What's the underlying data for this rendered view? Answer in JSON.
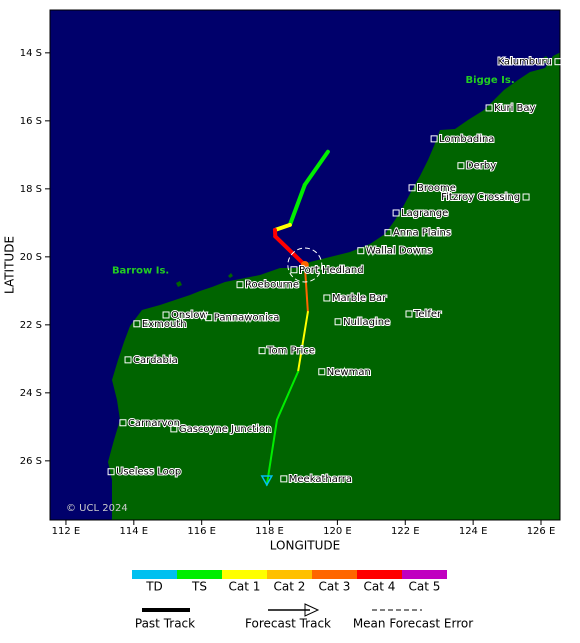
{
  "map": {
    "xlim": [
      111.53,
      126.56
    ],
    "ylim": [
      12.74,
      27.74
    ],
    "xlabel": "LONGITUDE",
    "ylabel": "LATITUDE",
    "xticks": [
      {
        "value": 112,
        "label": "112 E"
      },
      {
        "value": 114,
        "label": "114 E"
      },
      {
        "value": 116,
        "label": "116 E"
      },
      {
        "value": 118,
        "label": "118 E"
      },
      {
        "value": 120,
        "label": "120 E"
      },
      {
        "value": 122,
        "label": "122 E"
      },
      {
        "value": 124,
        "label": "124 E"
      },
      {
        "value": 126,
        "label": "126 E"
      }
    ],
    "yticks": [
      {
        "value": 14,
        "label": "14 S"
      },
      {
        "value": 16,
        "label": "16 S"
      },
      {
        "value": 18,
        "label": "18 S"
      },
      {
        "value": 20,
        "label": "20 S"
      },
      {
        "value": 22,
        "label": "22 S"
      },
      {
        "value": 24,
        "label": "24 S"
      },
      {
        "value": 26,
        "label": "26 S"
      }
    ],
    "copyright": "© UCL 2024",
    "islands": [
      {
        "name": "Barrow Is.",
        "lon": 114.2,
        "lat": 20.4
      },
      {
        "name": "Bigge Is.",
        "lon": 124.5,
        "lat": 14.8
      }
    ],
    "places": [
      {
        "name": "Kalumburu",
        "lon": 126.5,
        "lat": 14.26,
        "side": "left"
      },
      {
        "name": "Kuri Bay",
        "lon": 124.47,
        "lat": 15.62
      },
      {
        "name": "Lombadina",
        "lon": 122.85,
        "lat": 16.53
      },
      {
        "name": "Derby",
        "lon": 123.64,
        "lat": 17.32
      },
      {
        "name": "Broome",
        "lon": 122.2,
        "lat": 17.97
      },
      {
        "name": "Fitzroy Crossing",
        "lon": 125.56,
        "lat": 18.24,
        "side": "left"
      },
      {
        "name": "Lagrange",
        "lon": 121.73,
        "lat": 18.71
      },
      {
        "name": "Anna Plains",
        "lon": 121.49,
        "lat": 19.29
      },
      {
        "name": "Wallal Downs",
        "lon": 120.69,
        "lat": 19.82
      },
      {
        "name": "Port Hedland",
        "lon": 118.72,
        "lat": 20.38
      },
      {
        "name": "Roebourne",
        "lon": 117.13,
        "lat": 20.82
      },
      {
        "name": "Marble Bar",
        "lon": 119.69,
        "lat": 21.21
      },
      {
        "name": "Onslow",
        "lon": 114.95,
        "lat": 21.71
      },
      {
        "name": "Exmouth",
        "lon": 114.09,
        "lat": 21.97
      },
      {
        "name": "Pannawonica",
        "lon": 116.21,
        "lat": 21.79
      },
      {
        "name": "Telfer",
        "lon": 122.11,
        "lat": 21.68
      },
      {
        "name": "Nullagine",
        "lon": 120.02,
        "lat": 21.91
      },
      {
        "name": "Tom Price",
        "lon": 117.78,
        "lat": 22.76
      },
      {
        "name": "Cardabia",
        "lon": 113.83,
        "lat": 23.03
      },
      {
        "name": "Newman",
        "lon": 119.54,
        "lat": 23.38
      },
      {
        "name": "Carnarvon",
        "lon": 113.68,
        "lat": 24.88
      },
      {
        "name": "Gascoyne Junction",
        "lon": 115.18,
        "lat": 25.06
      },
      {
        "name": "Useless Loop",
        "lon": 113.33,
        "lat": 26.32
      },
      {
        "name": "Meekatharra",
        "lon": 118.42,
        "lat": 26.53
      }
    ],
    "past_track": [
      {
        "lon": 119.72,
        "lat": 16.91,
        "cat": "TS"
      },
      {
        "lon": 119.04,
        "lat": 17.88,
        "cat": "TS"
      },
      {
        "lon": 118.6,
        "lat": 19.06,
        "cat": "Cat 1"
      },
      {
        "lon": 118.16,
        "lat": 19.21,
        "cat": "Cat 4"
      },
      {
        "lon": 118.17,
        "lat": 19.4,
        "cat": "Cat 4"
      },
      {
        "lon": 119.04,
        "lat": 20.24,
        "cat": "Cat 3"
      }
    ],
    "forecast_track": [
      {
        "lon": 119.04,
        "lat": 20.24,
        "cat": "Cat 3"
      },
      {
        "lon": 119.13,
        "lat": 21.62,
        "cat": "Cat 1"
      },
      {
        "lon": 118.84,
        "lat": 23.38,
        "cat": "TS"
      },
      {
        "lon": 118.22,
        "lat": 24.79,
        "cat": "TS"
      },
      {
        "lon": 117.92,
        "lat": 26.71,
        "cat": "TD"
      }
    ],
    "error_circle": {
      "lon": 119.04,
      "lat": 20.24,
      "radius": 0.5
    }
  },
  "legend": {
    "categories": [
      {
        "label": "TD",
        "color": "#00c0f0"
      },
      {
        "label": "TS",
        "color": "#00ee00"
      },
      {
        "label": "Cat 1",
        "color": "#ffff00"
      },
      {
        "label": "Cat 2",
        "color": "#ffc000"
      },
      {
        "label": "Cat 3",
        "color": "#ff6600"
      },
      {
        "label": "Cat 4",
        "color": "#ff0000"
      },
      {
        "label": "Cat 5",
        "color": "#c000c0"
      }
    ],
    "past": "Past Track",
    "forecast": "Forecast Track",
    "error": "Mean Forecast Error"
  }
}
